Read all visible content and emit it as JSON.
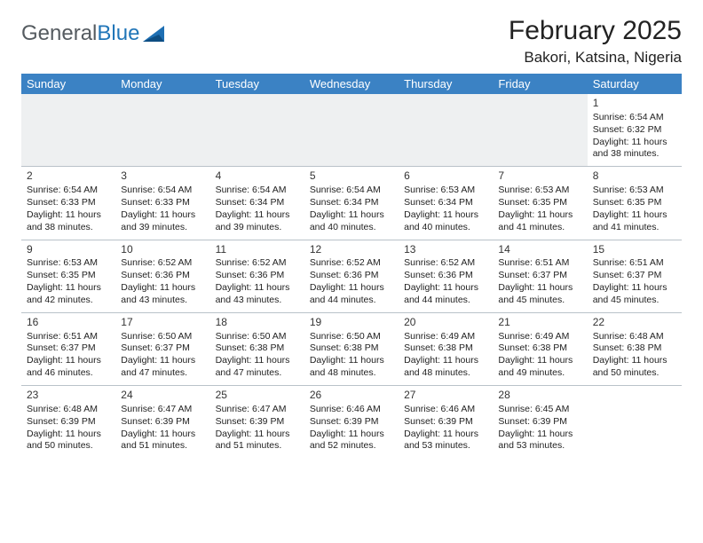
{
  "brand": {
    "part1": "General",
    "part2": "Blue"
  },
  "title": "February 2025",
  "location": "Bakori, Katsina, Nigeria",
  "theme": {
    "header_bg": "#3b82c4",
    "header_fg": "#ffffff",
    "grid_line": "#b9c2c9",
    "logo_gray": "#555b60",
    "logo_blue": "#2176b8",
    "empty_bg": "#eef0f1",
    "page_bg": "#ffffff",
    "title_fontsize": 30,
    "location_fontsize": 17,
    "cell_fontsize": 10.5
  },
  "day_headers": [
    "Sunday",
    "Monday",
    "Tuesday",
    "Wednesday",
    "Thursday",
    "Friday",
    "Saturday"
  ],
  "weeks": [
    [
      {
        "n": "",
        "sr": "",
        "ss": "",
        "dl": ""
      },
      {
        "n": "",
        "sr": "",
        "ss": "",
        "dl": ""
      },
      {
        "n": "",
        "sr": "",
        "ss": "",
        "dl": ""
      },
      {
        "n": "",
        "sr": "",
        "ss": "",
        "dl": ""
      },
      {
        "n": "",
        "sr": "",
        "ss": "",
        "dl": ""
      },
      {
        "n": "",
        "sr": "",
        "ss": "",
        "dl": ""
      },
      {
        "n": "1",
        "sr": "Sunrise: 6:54 AM",
        "ss": "Sunset: 6:32 PM",
        "dl": "Daylight: 11 hours and 38 minutes."
      }
    ],
    [
      {
        "n": "2",
        "sr": "Sunrise: 6:54 AM",
        "ss": "Sunset: 6:33 PM",
        "dl": "Daylight: 11 hours and 38 minutes."
      },
      {
        "n": "3",
        "sr": "Sunrise: 6:54 AM",
        "ss": "Sunset: 6:33 PM",
        "dl": "Daylight: 11 hours and 39 minutes."
      },
      {
        "n": "4",
        "sr": "Sunrise: 6:54 AM",
        "ss": "Sunset: 6:34 PM",
        "dl": "Daylight: 11 hours and 39 minutes."
      },
      {
        "n": "5",
        "sr": "Sunrise: 6:54 AM",
        "ss": "Sunset: 6:34 PM",
        "dl": "Daylight: 11 hours and 40 minutes."
      },
      {
        "n": "6",
        "sr": "Sunrise: 6:53 AM",
        "ss": "Sunset: 6:34 PM",
        "dl": "Daylight: 11 hours and 40 minutes."
      },
      {
        "n": "7",
        "sr": "Sunrise: 6:53 AM",
        "ss": "Sunset: 6:35 PM",
        "dl": "Daylight: 11 hours and 41 minutes."
      },
      {
        "n": "8",
        "sr": "Sunrise: 6:53 AM",
        "ss": "Sunset: 6:35 PM",
        "dl": "Daylight: 11 hours and 41 minutes."
      }
    ],
    [
      {
        "n": "9",
        "sr": "Sunrise: 6:53 AM",
        "ss": "Sunset: 6:35 PM",
        "dl": "Daylight: 11 hours and 42 minutes."
      },
      {
        "n": "10",
        "sr": "Sunrise: 6:52 AM",
        "ss": "Sunset: 6:36 PM",
        "dl": "Daylight: 11 hours and 43 minutes."
      },
      {
        "n": "11",
        "sr": "Sunrise: 6:52 AM",
        "ss": "Sunset: 6:36 PM",
        "dl": "Daylight: 11 hours and 43 minutes."
      },
      {
        "n": "12",
        "sr": "Sunrise: 6:52 AM",
        "ss": "Sunset: 6:36 PM",
        "dl": "Daylight: 11 hours and 44 minutes."
      },
      {
        "n": "13",
        "sr": "Sunrise: 6:52 AM",
        "ss": "Sunset: 6:36 PM",
        "dl": "Daylight: 11 hours and 44 minutes."
      },
      {
        "n": "14",
        "sr": "Sunrise: 6:51 AM",
        "ss": "Sunset: 6:37 PM",
        "dl": "Daylight: 11 hours and 45 minutes."
      },
      {
        "n": "15",
        "sr": "Sunrise: 6:51 AM",
        "ss": "Sunset: 6:37 PM",
        "dl": "Daylight: 11 hours and 45 minutes."
      }
    ],
    [
      {
        "n": "16",
        "sr": "Sunrise: 6:51 AM",
        "ss": "Sunset: 6:37 PM",
        "dl": "Daylight: 11 hours and 46 minutes."
      },
      {
        "n": "17",
        "sr": "Sunrise: 6:50 AM",
        "ss": "Sunset: 6:37 PM",
        "dl": "Daylight: 11 hours and 47 minutes."
      },
      {
        "n": "18",
        "sr": "Sunrise: 6:50 AM",
        "ss": "Sunset: 6:38 PM",
        "dl": "Daylight: 11 hours and 47 minutes."
      },
      {
        "n": "19",
        "sr": "Sunrise: 6:50 AM",
        "ss": "Sunset: 6:38 PM",
        "dl": "Daylight: 11 hours and 48 minutes."
      },
      {
        "n": "20",
        "sr": "Sunrise: 6:49 AM",
        "ss": "Sunset: 6:38 PM",
        "dl": "Daylight: 11 hours and 48 minutes."
      },
      {
        "n": "21",
        "sr": "Sunrise: 6:49 AM",
        "ss": "Sunset: 6:38 PM",
        "dl": "Daylight: 11 hours and 49 minutes."
      },
      {
        "n": "22",
        "sr": "Sunrise: 6:48 AM",
        "ss": "Sunset: 6:38 PM",
        "dl": "Daylight: 11 hours and 50 minutes."
      }
    ],
    [
      {
        "n": "23",
        "sr": "Sunrise: 6:48 AM",
        "ss": "Sunset: 6:39 PM",
        "dl": "Daylight: 11 hours and 50 minutes."
      },
      {
        "n": "24",
        "sr": "Sunrise: 6:47 AM",
        "ss": "Sunset: 6:39 PM",
        "dl": "Daylight: 11 hours and 51 minutes."
      },
      {
        "n": "25",
        "sr": "Sunrise: 6:47 AM",
        "ss": "Sunset: 6:39 PM",
        "dl": "Daylight: 11 hours and 51 minutes."
      },
      {
        "n": "26",
        "sr": "Sunrise: 6:46 AM",
        "ss": "Sunset: 6:39 PM",
        "dl": "Daylight: 11 hours and 52 minutes."
      },
      {
        "n": "27",
        "sr": "Sunrise: 6:46 AM",
        "ss": "Sunset: 6:39 PM",
        "dl": "Daylight: 11 hours and 53 minutes."
      },
      {
        "n": "28",
        "sr": "Sunrise: 6:45 AM",
        "ss": "Sunset: 6:39 PM",
        "dl": "Daylight: 11 hours and 53 minutes."
      },
      {
        "n": "",
        "sr": "",
        "ss": "",
        "dl": ""
      }
    ]
  ]
}
